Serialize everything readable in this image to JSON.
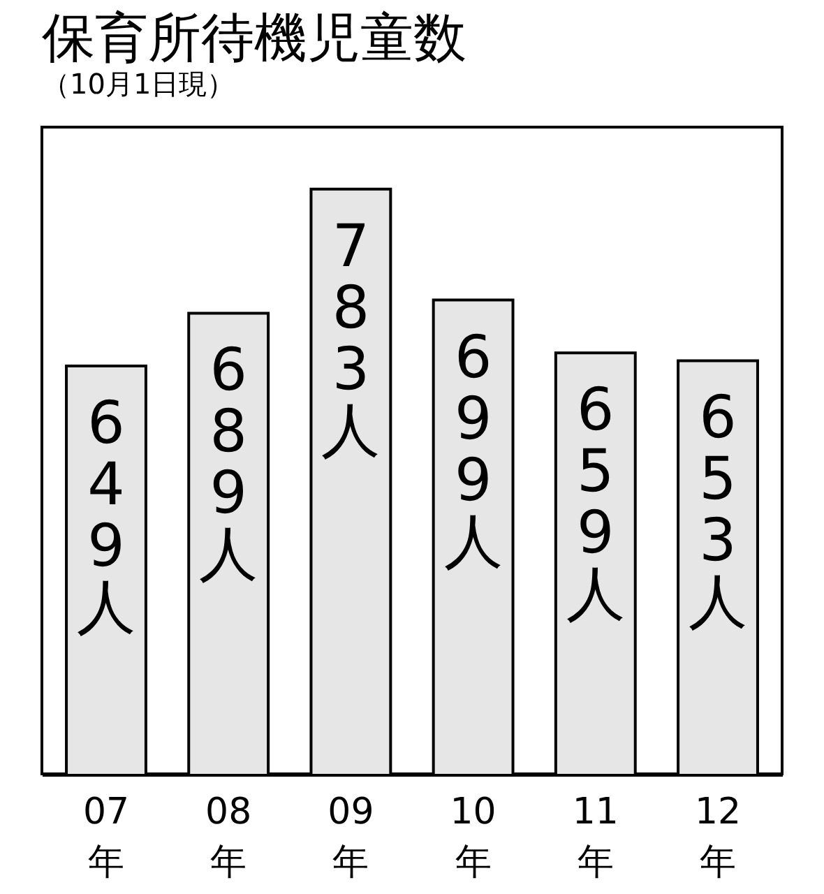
{
  "chart_data": {
    "type": "bar",
    "title": "保育所待機児童数",
    "subtitle": "（10月1日現）",
    "categories": [
      "07年",
      "08年",
      "09年",
      "10年",
      "11年",
      "12年"
    ],
    "values": [
      649,
      689,
      783,
      699,
      659,
      653
    ],
    "value_labels": [
      "649人",
      "689人",
      "783人",
      "699人",
      "659人",
      "653人"
    ],
    "color": "#e6e6e6",
    "ylim": [
      340,
      830
    ]
  }
}
